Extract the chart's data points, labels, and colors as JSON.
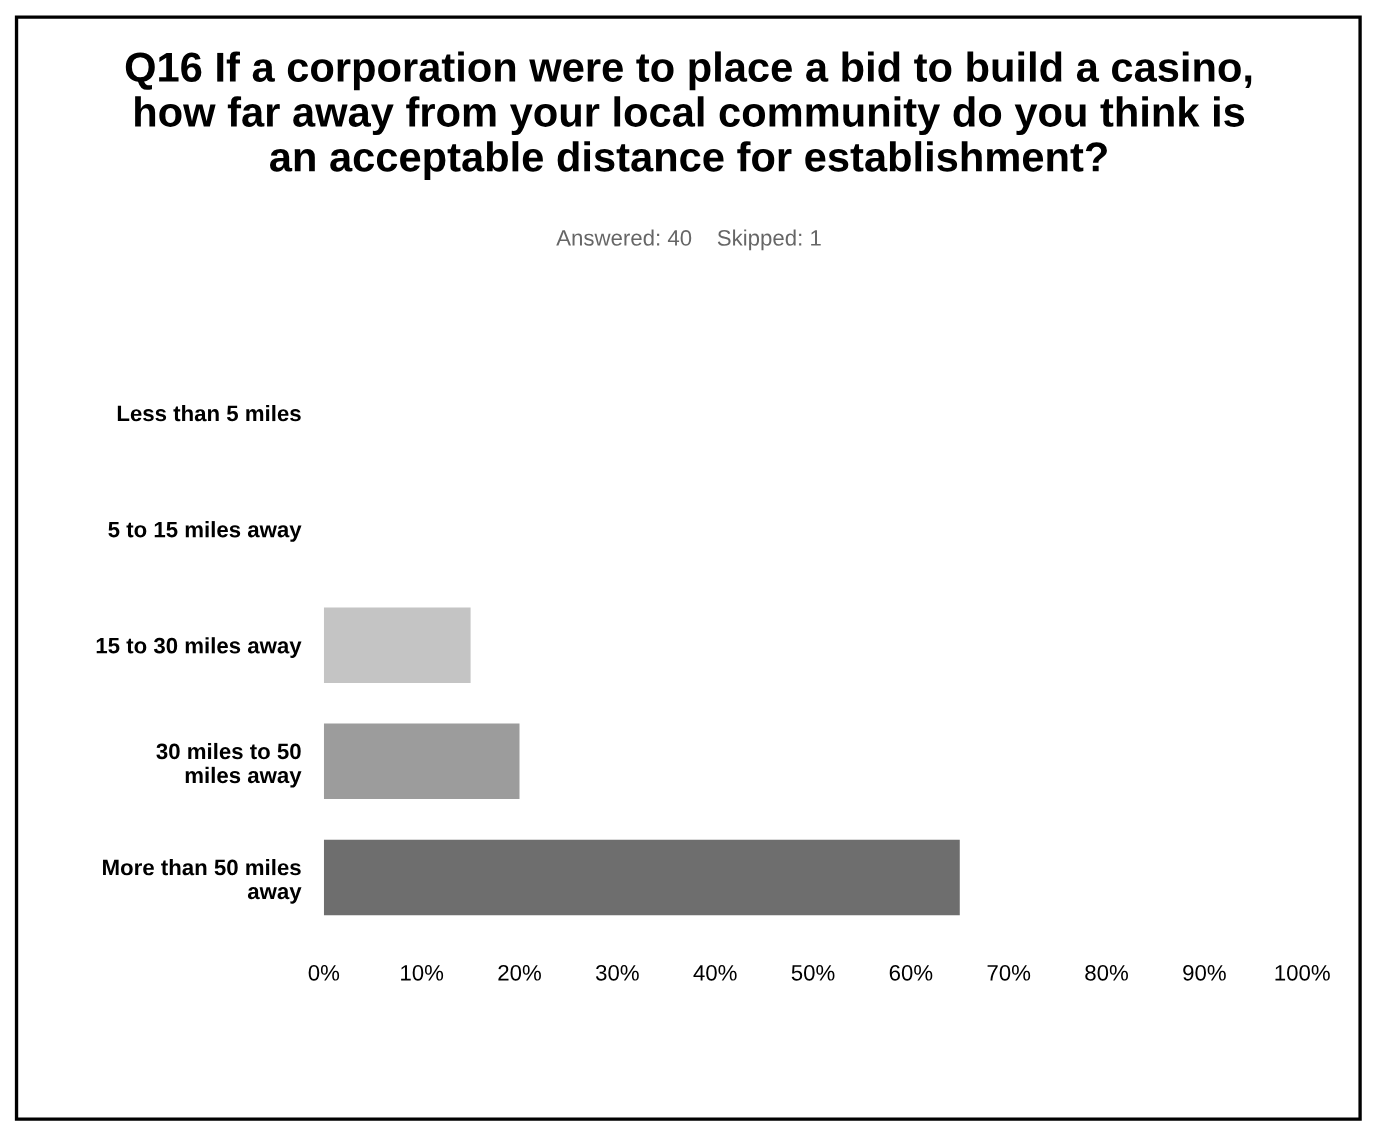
{
  "chart_data": {
    "type": "bar",
    "orientation": "horizontal",
    "title": "Q16 If a corporation were to place a bid to build a casino, how far away from your local community do you think is an acceptable distance for establishment?",
    "subtitle": "Answered: 40    Skipped: 1",
    "categories": [
      "Less than 5 miles",
      "5 to 15 miles away",
      "15 to 30 miles away",
      "30 miles to 50 miles away",
      "More than 50 miles away"
    ],
    "values": [
      0,
      0,
      15,
      20,
      65
    ],
    "colors": [
      "#d9d9d9",
      "#bfbfbf",
      "#c4c4c4",
      "#9c9c9c",
      "#6e6e6e"
    ],
    "xlim": [
      0,
      100
    ],
    "xticks": [
      {
        "value": 0,
        "label": "0%"
      },
      {
        "value": 10,
        "label": "10%"
      },
      {
        "value": 20,
        "label": "20%"
      },
      {
        "value": 30,
        "label": "30%"
      },
      {
        "value": 40,
        "label": "40%"
      },
      {
        "value": 50,
        "label": "50%"
      },
      {
        "value": 60,
        "label": "60%"
      },
      {
        "value": 70,
        "label": "70%"
      },
      {
        "value": 80,
        "label": "80%"
      },
      {
        "value": 90,
        "label": "90%"
      },
      {
        "value": 100,
        "label": "100%"
      }
    ],
    "grid": false,
    "legend": false
  }
}
